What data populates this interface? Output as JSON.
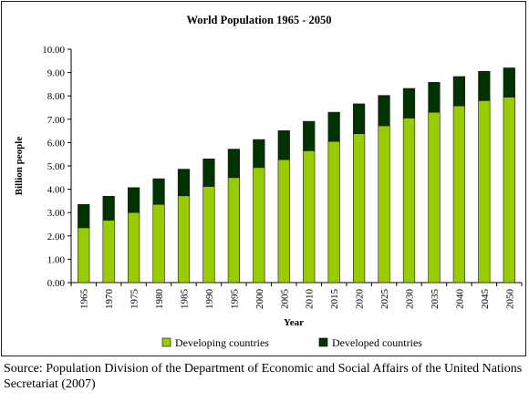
{
  "chart_data": {
    "type": "bar",
    "stacked": true,
    "title": "World Population 1965 - 2050",
    "xlabel": "Year",
    "ylabel": "Billion people",
    "ylim": [
      0,
      10
    ],
    "yticks": [
      "0.00",
      "1.00",
      "2.00",
      "3.00",
      "4.00",
      "5.00",
      "6.00",
      "7.00",
      "8.00",
      "9.00",
      "10.00"
    ],
    "categories": [
      "1965",
      "1970",
      "1975",
      "1980",
      "1985",
      "1990",
      "1995",
      "2000",
      "2005",
      "2010",
      "2015",
      "2020",
      "2025",
      "2030",
      "2035",
      "2040",
      "2045",
      "2050"
    ],
    "series": [
      {
        "name": "Developing countries",
        "color": "#99cc00",
        "values": [
          2.35,
          2.67,
          3.0,
          3.35,
          3.72,
          4.12,
          4.5,
          4.93,
          5.27,
          5.65,
          6.05,
          6.38,
          6.72,
          7.05,
          7.3,
          7.57,
          7.8,
          7.95
        ]
      },
      {
        "name": "Developed countries",
        "color": "#003300",
        "values": [
          1.0,
          1.03,
          1.07,
          1.1,
          1.14,
          1.18,
          1.22,
          1.2,
          1.24,
          1.26,
          1.25,
          1.28,
          1.3,
          1.27,
          1.28,
          1.26,
          1.25,
          1.25
        ]
      }
    ],
    "grid": false,
    "legend_position": "bottom"
  },
  "source_text": "Source: Population Division of the Department of Economic and Social Affairs of the United Nations Secretariat (2007)"
}
